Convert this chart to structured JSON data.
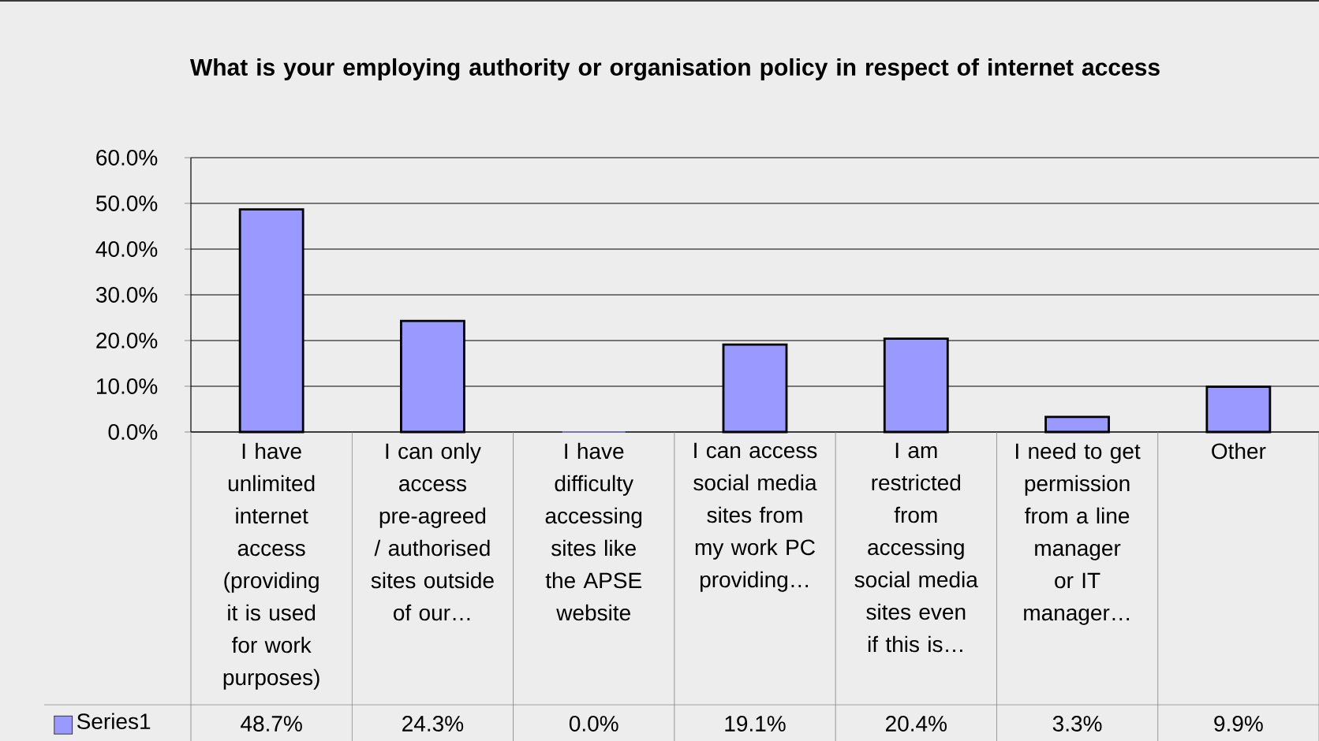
{
  "chart_data": {
    "type": "bar",
    "title": "What is your employing authority or organisation policy in respect of internet access",
    "categories": [
      "I have unlimited internet access (providing it is used for work purposes)",
      "I can only access pre-agreed / authorised sites outside of our…",
      "I have difficulty accessing sites like the APSE website",
      "I can access social media sites from my work PC providing…",
      "I am restricted from accessing social media sites even if this is…",
      "I need to get permission from a line manager or IT manager…",
      "Other"
    ],
    "series": [
      {
        "name": "Series1",
        "color": "#9999ff",
        "values": [
          48.7,
          24.3,
          0.0,
          19.1,
          20.4,
          3.3,
          9.9
        ],
        "value_labels": [
          "48.7%",
          "24.3%",
          "0.0%",
          "19.1%",
          "20.4%",
          "3.3%",
          "9.9%"
        ]
      }
    ],
    "ylim": [
      0,
      60
    ],
    "yticks": [
      {
        "value": 0,
        "label": "0.0%"
      },
      {
        "value": 10,
        "label": "10.0%"
      },
      {
        "value": 20,
        "label": "20.0%"
      },
      {
        "value": 30,
        "label": "30.0%"
      },
      {
        "value": 40,
        "label": "40.0%"
      },
      {
        "value": 50,
        "label": "50.0%"
      },
      {
        "value": 60,
        "label": "60.0%"
      }
    ],
    "grid": "y",
    "legend": "bottom"
  }
}
